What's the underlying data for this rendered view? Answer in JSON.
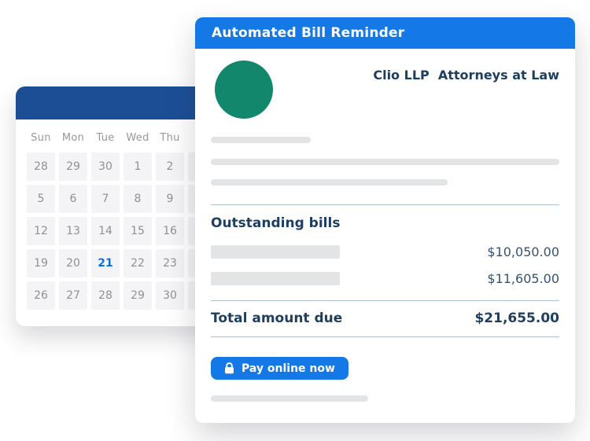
{
  "colors": {
    "accent_blue": "#1478E6",
    "calendar_header_blue": "#1C4E96",
    "logo_green": "#12876B",
    "heading_navy": "#1D3E5F",
    "amount_navy": "#35536F",
    "selected_date_blue": "#0F6FE0",
    "skeleton_gray": "#E3E4E6",
    "cell_gray": "#F4F4F6",
    "divider_blue_gray": "#AEBFD0"
  },
  "reminder_card": {
    "title": "Automated Bill Reminder",
    "firm_name": "Clio LLP  Attorneys at Law",
    "logo": "green-circle-logo",
    "outstanding_heading": "Outstanding bills",
    "bills": [
      {
        "amount": "$10,050.00"
      },
      {
        "amount": "$11,605.00"
      }
    ],
    "total_label": "Total amount due",
    "total_amount": "$21,655.00",
    "pay_button_label": "Pay online now",
    "pay_button_icon": "lock-icon"
  },
  "calendar": {
    "day_headers": [
      "Sun",
      "Mon",
      "Tue",
      "Wed",
      "Thu",
      "",
      ""
    ],
    "weeks": [
      [
        "28",
        "29",
        "30",
        "1",
        "2",
        "",
        ""
      ],
      [
        "5",
        "6",
        "7",
        "8",
        "9",
        "",
        ""
      ],
      [
        "12",
        "13",
        "14",
        "15",
        "16",
        "",
        ""
      ],
      [
        "19",
        "20",
        "21",
        "22",
        "23",
        "",
        ""
      ],
      [
        "26",
        "27",
        "28",
        "29",
        "30",
        "",
        ""
      ]
    ],
    "selected": {
      "row": 3,
      "col": 2,
      "value": "21"
    }
  }
}
